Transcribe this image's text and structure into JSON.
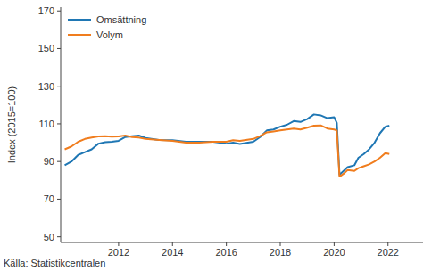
{
  "chart_data": {
    "type": "line",
    "y_label": "Index (2015=100)",
    "source": "Källa: Statistikcentralen",
    "legend": "upper left",
    "grid": false,
    "xlim": [
      2009.85,
      2023.3
    ],
    "xticks": [
      2012,
      2014,
      2016,
      2018,
      2020,
      2022
    ],
    "ylim": [
      47,
      172
    ],
    "yticks": [
      50,
      70,
      90,
      110,
      130,
      150,
      170
    ],
    "x": [
      2010.0,
      2010.25,
      2010.5,
      2010.75,
      2011.0,
      2011.25,
      2011.5,
      2011.75,
      2012.0,
      2012.25,
      2012.5,
      2012.75,
      2013.0,
      2013.5,
      2014.0,
      2014.5,
      2015.0,
      2015.5,
      2016.0,
      2016.25,
      2016.5,
      2017.0,
      2017.25,
      2017.5,
      2017.75,
      2018.0,
      2018.25,
      2018.5,
      2018.75,
      2019.0,
      2019.25,
      2019.5,
      2019.75,
      2020.0,
      2020.1,
      2020.2,
      2020.35,
      2020.5,
      2020.75,
      2020.9,
      2021.1,
      2021.3,
      2021.5,
      2021.7,
      2021.9,
      2022.05
    ],
    "series": [
      {
        "name": "Omsättning",
        "color": "#1f77b4",
        "values": [
          88,
          90,
          93.5,
          95,
          96.5,
          99.5,
          100.3,
          100.5,
          101,
          103,
          103.5,
          103.8,
          102.5,
          101.5,
          101.3,
          100.5,
          100.5,
          100.5,
          99.5,
          100,
          99.3,
          100.5,
          103,
          106.5,
          107,
          108.5,
          109.5,
          111.5,
          111,
          112.5,
          115,
          114.5,
          113,
          113.5,
          110.5,
          83,
          85,
          87,
          88,
          92,
          94,
          96.5,
          100,
          105,
          108.5,
          109
        ]
      },
      {
        "name": "Volym",
        "color": "#f07d1e",
        "values": [
          96.5,
          98,
          100.5,
          102,
          102.8,
          103.3,
          103.5,
          103.2,
          103.3,
          103.8,
          103,
          102.7,
          102,
          101.5,
          101,
          100,
          100,
          100.5,
          100.5,
          101.3,
          101,
          102,
          103.5,
          105.5,
          106,
          106.5,
          107,
          107.5,
          107,
          108,
          109,
          109.2,
          107.5,
          107,
          106.5,
          82,
          83.5,
          85.5,
          85,
          86.5,
          87.5,
          88.5,
          90,
          92,
          94.5,
          94
        ]
      }
    ]
  }
}
